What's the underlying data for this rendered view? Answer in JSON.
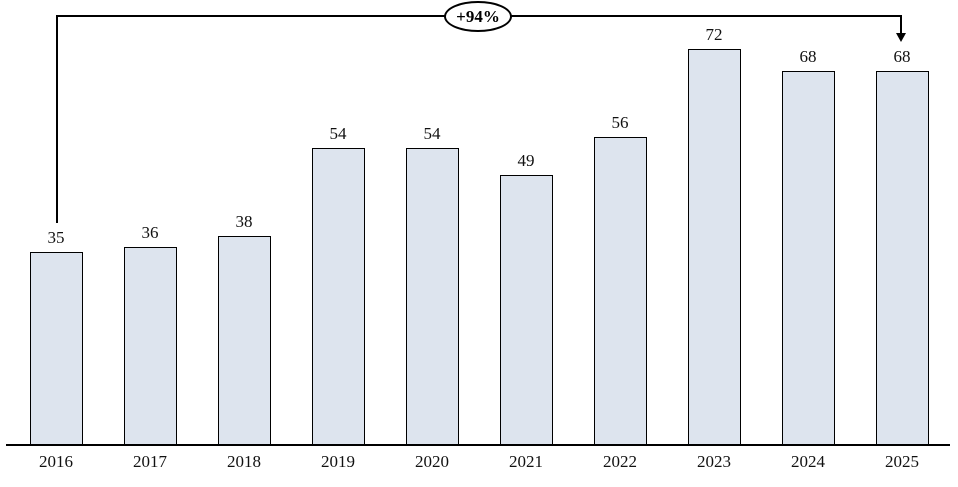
{
  "chart_data": {
    "type": "bar",
    "categories": [
      "2016",
      "2017",
      "2018",
      "2019",
      "2020",
      "2021",
      "2022",
      "2023",
      "2024",
      "2025"
    ],
    "values": [
      35,
      36,
      38,
      54,
      54,
      49,
      56,
      72,
      68,
      68
    ],
    "title": "",
    "xlabel": "",
    "ylabel": "",
    "ylim": [
      0,
      78
    ],
    "grid": false,
    "legend": false,
    "bar_fill_color": "#dde4ee",
    "bar_border_color": "#000000",
    "annotation": {
      "label": "+94%",
      "from_category": "2016",
      "to_category": "2025"
    }
  }
}
